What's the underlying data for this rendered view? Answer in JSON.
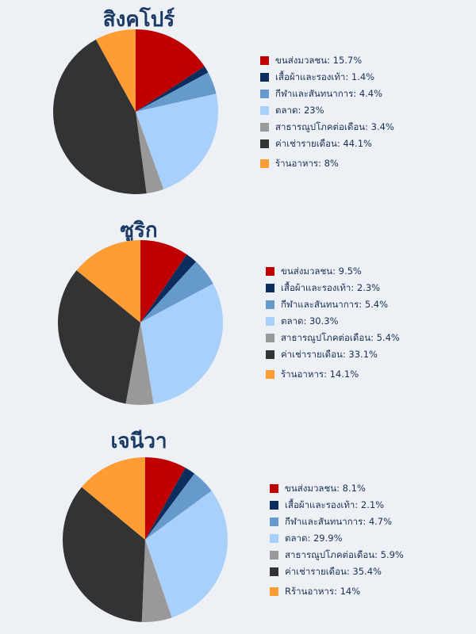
{
  "colors": [
    "#c00000",
    "#0b2e5c",
    "#6699cc",
    "#a9d0fa",
    "#999999",
    "#333333",
    "#ff9c33"
  ],
  "chart_data": [
    {
      "type": "pie",
      "title": "สิงคโปร์",
      "legend_position": "right",
      "slices": [
        {
          "label": "ขนส่งมวลชน",
          "value": 15.7,
          "text": "ขนส่งมวลชน: 15.7%"
        },
        {
          "label": "เสื้อผ้าและรองเท้า",
          "value": 1.4,
          "text": "เสื้อผ้าและรองเท้า: 1.4%"
        },
        {
          "label": "กีฬาและสันทนาการ",
          "value": 4.4,
          "text": "กีฬาและสันทนาการ: 4.4%"
        },
        {
          "label": "ตลาด",
          "value": 23,
          "text": "ตลาด: 23%"
        },
        {
          "label": "สาธารณูปโภคต่อเดือน",
          "value": 3.4,
          "text": "สาธารณูปโภคต่อเดือน: 3.4%"
        },
        {
          "label": "ค่าเช่ารายเดือน",
          "value": 44.1,
          "text": "ค่าเช่ารายเดือน: 44.1%"
        },
        {
          "label": "ร้านอาหาร",
          "value": 8,
          "text": "ร้านอาหาร: 8%"
        }
      ]
    },
    {
      "type": "pie",
      "title": "ซูริก",
      "legend_position": "right",
      "slices": [
        {
          "label": "ขนส่งมวลชน",
          "value": 9.5,
          "text": "ขนส่งมวลชน: 9.5%"
        },
        {
          "label": "เสื้อผ้าและรองเท้า",
          "value": 2.3,
          "text": "เสื้อผ้าและรองเท้า: 2.3%"
        },
        {
          "label": "กีฬาและสันทนาการ",
          "value": 5.4,
          "text": "กีฬาและสันทนาการ: 5.4%"
        },
        {
          "label": "ตลาด",
          "value": 30.3,
          "text": "ตลาด: 30.3%"
        },
        {
          "label": "สาธารณูปโภคต่อเดือน",
          "value": 5.4,
          "text": "สาธารณูปโภคต่อเดือน: 5.4%"
        },
        {
          "label": "ค่าเช่ารายเดือน",
          "value": 33.1,
          "text": "ค่าเช่ารายเดือน: 33.1%"
        },
        {
          "label": "ร้านอาหาร",
          "value": 14.1,
          "text": "ร้านอาหาร: 14.1%"
        }
      ]
    },
    {
      "type": "pie",
      "title": "เจนีวา",
      "legend_position": "right",
      "slices": [
        {
          "label": "ขนส่งมวลชน",
          "value": 8.1,
          "text": "ขนส่งมวลชน: 8.1%"
        },
        {
          "label": "เสื้อผ้าและรองเท้า",
          "value": 2.1,
          "text": "เสื้อผ้าและรองเท้า: 2.1%"
        },
        {
          "label": "กีฬาและสันทนาการ",
          "value": 4.7,
          "text": "กีฬาและสันทนาการ: 4.7%"
        },
        {
          "label": "ตลาด",
          "value": 29.9,
          "text": "ตลาด: 29.9%"
        },
        {
          "label": "สาธารณูปโภคต่อเดือน",
          "value": 5.9,
          "text": "สาธารณูปโภคต่อเดือน: 5.9%"
        },
        {
          "label": "ค่าเช่ารายเดือน",
          "value": 35.4,
          "text": "ค่าเช่ารายเดือน: 35.4%"
        },
        {
          "label": "ร้านอาหาร",
          "value": 14,
          "text": "Rร้านอาหาร: 14%"
        }
      ]
    }
  ]
}
